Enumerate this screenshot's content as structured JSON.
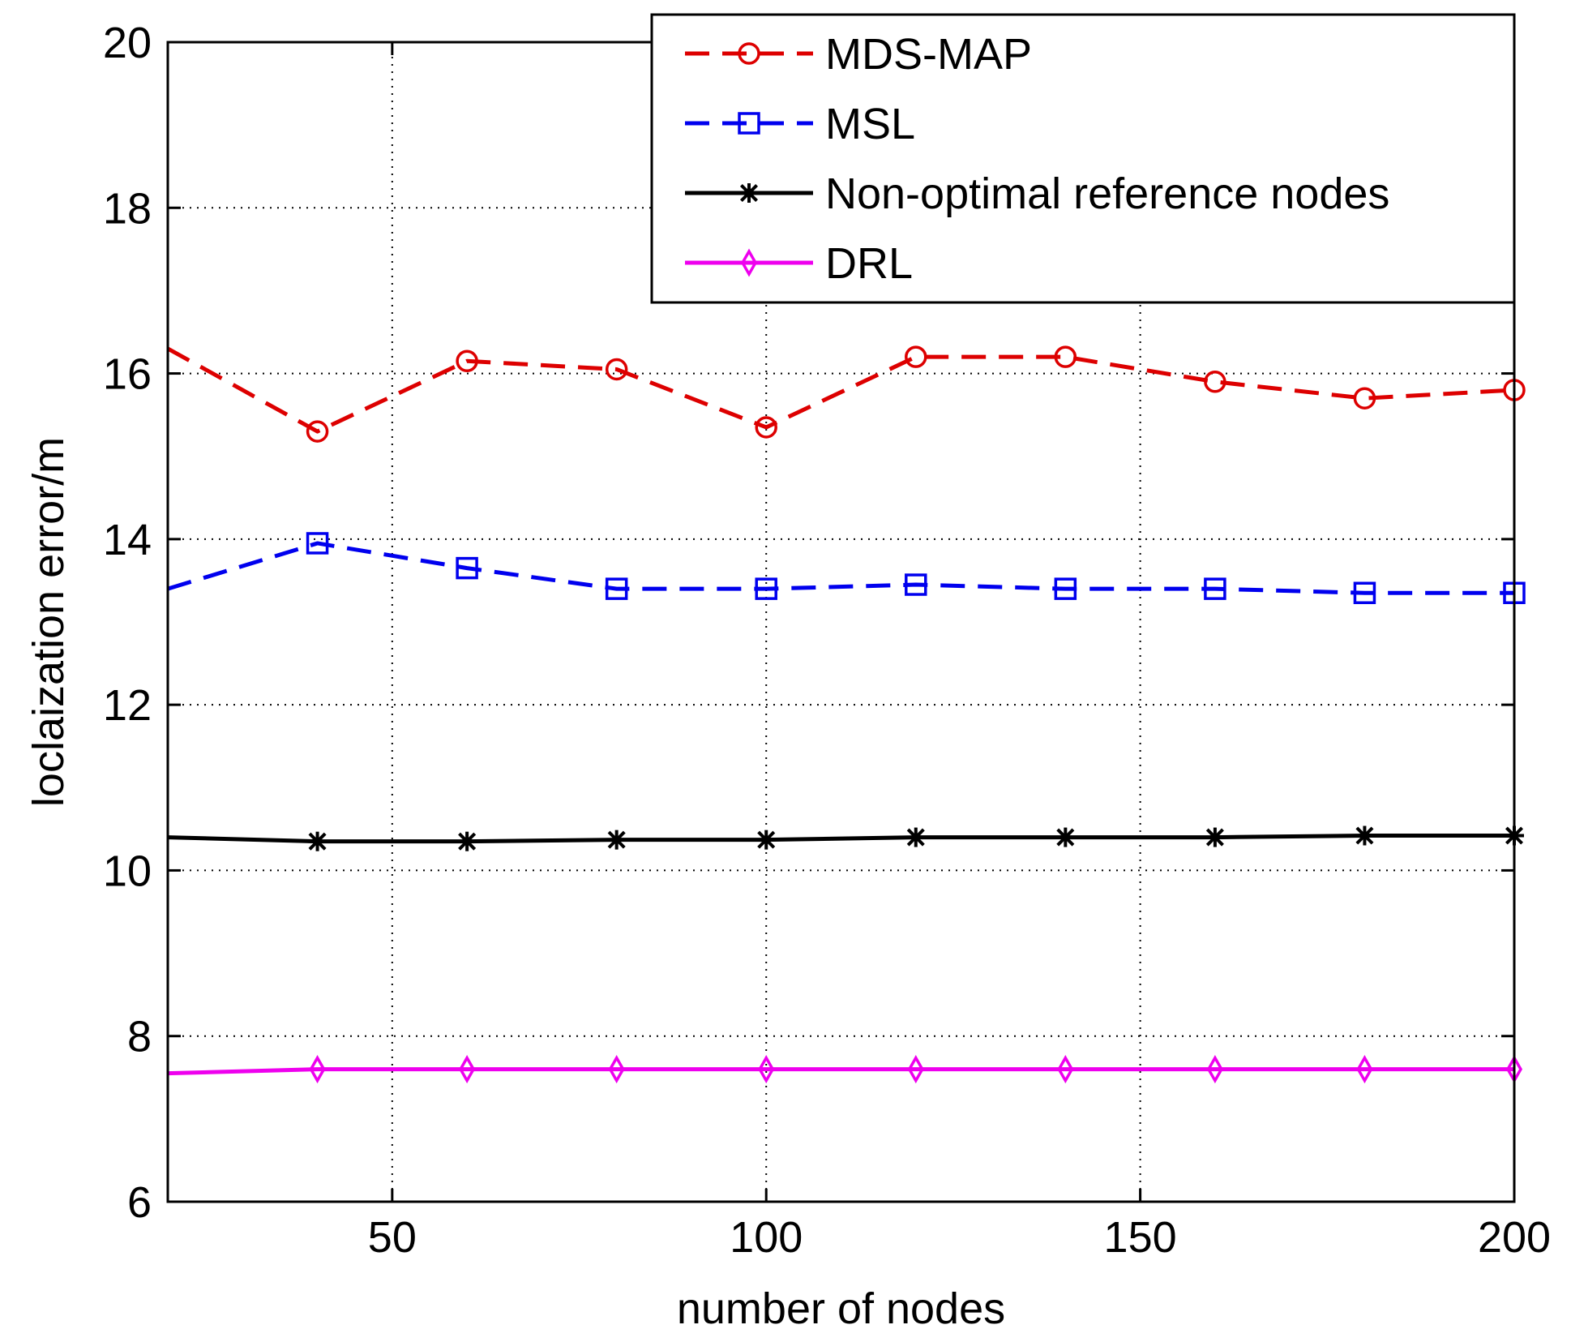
{
  "chart_data": {
    "type": "line",
    "title": "",
    "xlabel": "number of nodes",
    "ylabel": "loclaization error/m",
    "xlim": [
      20,
      200
    ],
    "ylim": [
      6,
      20
    ],
    "xticks": [
      50,
      100,
      150,
      200
    ],
    "yticks": [
      6,
      8,
      10,
      12,
      14,
      16,
      18,
      20
    ],
    "grid": true,
    "legend_position": "top-right",
    "series": [
      {
        "name": "MDS-MAP",
        "color": "#dd0000",
        "line_style": "dashed",
        "marker": "circle",
        "line_start": [
          20,
          16.3
        ],
        "x": [
          40,
          60,
          80,
          100,
          120,
          140,
          160,
          180,
          200
        ],
        "y": [
          15.3,
          16.15,
          16.05,
          15.35,
          16.2,
          16.2,
          15.9,
          15.7,
          15.8
        ]
      },
      {
        "name": "MSL",
        "color": "#0000ee",
        "line_style": "dashed",
        "marker": "square",
        "line_start": [
          20,
          13.4
        ],
        "x": [
          40,
          60,
          80,
          100,
          120,
          140,
          160,
          180,
          200
        ],
        "y": [
          13.95,
          13.65,
          13.4,
          13.4,
          13.45,
          13.4,
          13.4,
          13.35,
          13.35
        ]
      },
      {
        "name": "Non-optimal reference nodes",
        "color": "#000000",
        "line_style": "solid",
        "marker": "star",
        "line_start": [
          20,
          10.4
        ],
        "x": [
          40,
          60,
          80,
          100,
          120,
          140,
          160,
          180,
          200
        ],
        "y": [
          10.35,
          10.35,
          10.37,
          10.37,
          10.4,
          10.4,
          10.4,
          10.42,
          10.42
        ]
      },
      {
        "name": "DRL",
        "color": "#ee00ee",
        "line_style": "solid",
        "marker": "diamond",
        "line_start": [
          20,
          7.55
        ],
        "x": [
          40,
          60,
          80,
          100,
          120,
          140,
          160,
          180,
          200
        ],
        "y": [
          7.6,
          7.6,
          7.6,
          7.6,
          7.6,
          7.6,
          7.6,
          7.6,
          7.6
        ]
      }
    ]
  }
}
